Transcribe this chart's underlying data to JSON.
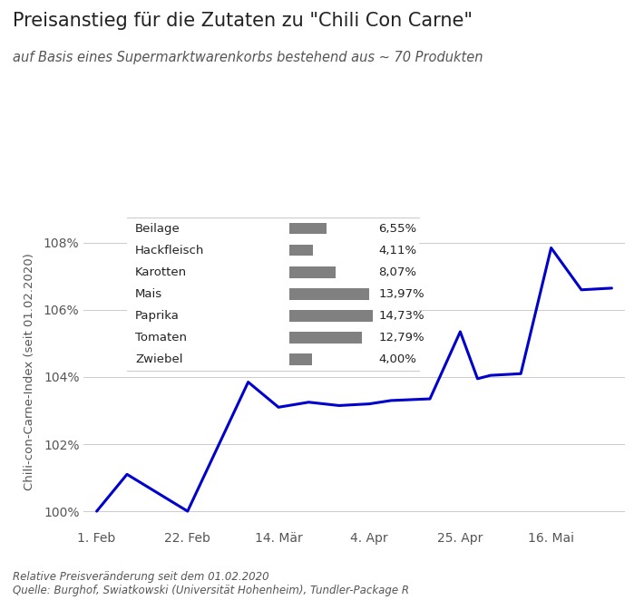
{
  "title": "Preisanstieg für die Zutaten zu \"Chili Con Carne\"",
  "subtitle": "auf Basis eines Supermarktwarenkorbs bestehend aus ~ 70 Produkten",
  "ylabel": "Chili-con-Carne-Index (seit 01.02.2020)",
  "footnote1": "Relative Preisveränderung seit dem 01.02.2020",
  "footnote2": "Quelle: Burghof, Swiatkowski (Universität Hohenheim), Tundler-Package R",
  "x_labels": [
    "1. Feb",
    "22. Feb",
    "14. Mär",
    "4. Apr",
    "25. Apr",
    "16. Mai"
  ],
  "x_values": [
    0,
    21,
    42,
    63,
    84,
    105
  ],
  "x_data": [
    0,
    7,
    21,
    35,
    42,
    49,
    56,
    63,
    68,
    77,
    84,
    88,
    91,
    98,
    105,
    112,
    119
  ],
  "y_data": [
    100.0,
    101.1,
    100.0,
    103.85,
    103.1,
    103.25,
    103.15,
    103.2,
    103.3,
    103.35,
    105.35,
    103.95,
    104.05,
    104.1,
    107.85,
    106.6,
    106.65
  ],
  "line_color": "#0000cc",
  "line_width": 2.2,
  "background_color": "#ffffff",
  "grid_color": "#cccccc",
  "ylim_min": 99.5,
  "ylim_max": 108.8,
  "xlim_min": -3,
  "xlim_max": 122,
  "yticks": [
    100,
    102,
    104,
    106,
    108
  ],
  "legend_items": [
    {
      "label": "Beilage",
      "value": "6,55%",
      "bar_width": 6.55
    },
    {
      "label": "Hackfleisch",
      "value": "4,11%",
      "bar_width": 4.11
    },
    {
      "label": "Karotten",
      "value": "8,07%",
      "bar_width": 8.07
    },
    {
      "label": "Mais",
      "value": "13,97%",
      "bar_width": 13.97
    },
    {
      "label": "Paprika",
      "value": "14,73%",
      "bar_width": 14.73
    },
    {
      "label": "Tomaten",
      "value": "12,79%",
      "bar_width": 12.79
    },
    {
      "label": "Zwiebel",
      "value": "4,00%",
      "bar_width": 4.0
    }
  ],
  "legend_bar_color": "#808080",
  "text_color": "#555555",
  "title_color": "#222222"
}
